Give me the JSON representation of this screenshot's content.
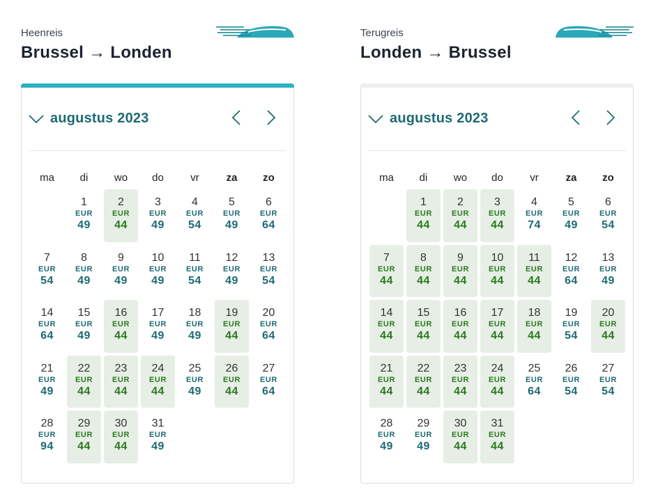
{
  "colors": {
    "accent": "#29b0c1",
    "inactive_bar": "#eeeeee",
    "price_default": "#1e6a73",
    "price_cheap": "#2a7a1c",
    "cheap_bg": "#e6eee6"
  },
  "trips": [
    {
      "kind": "Heenreis",
      "route": "Brussel → Londen",
      "active": true,
      "month": "augustus 2023",
      "weekdays": [
        "ma",
        "di",
        "wo",
        "do",
        "vr",
        "za",
        "zo"
      ],
      "start_offset": 1,
      "currency": "EUR",
      "days": [
        {
          "d": "1",
          "p": "49",
          "cheap": false
        },
        {
          "d": "2",
          "p": "44",
          "cheap": true
        },
        {
          "d": "3",
          "p": "49",
          "cheap": false
        },
        {
          "d": "4",
          "p": "54",
          "cheap": false
        },
        {
          "d": "5",
          "p": "49",
          "cheap": false
        },
        {
          "d": "6",
          "p": "64",
          "cheap": false
        },
        {
          "d": "7",
          "p": "54",
          "cheap": false
        },
        {
          "d": "8",
          "p": "49",
          "cheap": false
        },
        {
          "d": "9",
          "p": "49",
          "cheap": false
        },
        {
          "d": "10",
          "p": "49",
          "cheap": false
        },
        {
          "d": "11",
          "p": "54",
          "cheap": false
        },
        {
          "d": "12",
          "p": "49",
          "cheap": false
        },
        {
          "d": "13",
          "p": "54",
          "cheap": false
        },
        {
          "d": "14",
          "p": "64",
          "cheap": false
        },
        {
          "d": "15",
          "p": "49",
          "cheap": false
        },
        {
          "d": "16",
          "p": "44",
          "cheap": true
        },
        {
          "d": "17",
          "p": "49",
          "cheap": false
        },
        {
          "d": "18",
          "p": "49",
          "cheap": false
        },
        {
          "d": "19",
          "p": "44",
          "cheap": true
        },
        {
          "d": "20",
          "p": "64",
          "cheap": false
        },
        {
          "d": "21",
          "p": "49",
          "cheap": false
        },
        {
          "d": "22",
          "p": "44",
          "cheap": true
        },
        {
          "d": "23",
          "p": "44",
          "cheap": true
        },
        {
          "d": "24",
          "p": "44",
          "cheap": true
        },
        {
          "d": "25",
          "p": "49",
          "cheap": false
        },
        {
          "d": "26",
          "p": "44",
          "cheap": true
        },
        {
          "d": "27",
          "p": "64",
          "cheap": false
        },
        {
          "d": "28",
          "p": "94",
          "cheap": false
        },
        {
          "d": "29",
          "p": "44",
          "cheap": true
        },
        {
          "d": "30",
          "p": "44",
          "cheap": true
        },
        {
          "d": "31",
          "p": "49",
          "cheap": false
        }
      ]
    },
    {
      "kind": "Terugreis",
      "route": "Londen → Brussel",
      "active": false,
      "month": "augustus 2023",
      "weekdays": [
        "ma",
        "di",
        "wo",
        "do",
        "vr",
        "za",
        "zo"
      ],
      "start_offset": 1,
      "currency": "EUR",
      "days": [
        {
          "d": "1",
          "p": "44",
          "cheap": true
        },
        {
          "d": "2",
          "p": "44",
          "cheap": true
        },
        {
          "d": "3",
          "p": "44",
          "cheap": true
        },
        {
          "d": "4",
          "p": "74",
          "cheap": false
        },
        {
          "d": "5",
          "p": "49",
          "cheap": false
        },
        {
          "d": "6",
          "p": "54",
          "cheap": false
        },
        {
          "d": "7",
          "p": "44",
          "cheap": true
        },
        {
          "d": "8",
          "p": "44",
          "cheap": true
        },
        {
          "d": "9",
          "p": "44",
          "cheap": true
        },
        {
          "d": "10",
          "p": "44",
          "cheap": true
        },
        {
          "d": "11",
          "p": "44",
          "cheap": true
        },
        {
          "d": "12",
          "p": "64",
          "cheap": false
        },
        {
          "d": "13",
          "p": "49",
          "cheap": false
        },
        {
          "d": "14",
          "p": "44",
          "cheap": true
        },
        {
          "d": "15",
          "p": "44",
          "cheap": true
        },
        {
          "d": "16",
          "p": "44",
          "cheap": true
        },
        {
          "d": "17",
          "p": "44",
          "cheap": true
        },
        {
          "d": "18",
          "p": "44",
          "cheap": true
        },
        {
          "d": "19",
          "p": "54",
          "cheap": false
        },
        {
          "d": "20",
          "p": "44",
          "cheap": true
        },
        {
          "d": "21",
          "p": "44",
          "cheap": true
        },
        {
          "d": "22",
          "p": "44",
          "cheap": true
        },
        {
          "d": "23",
          "p": "44",
          "cheap": true
        },
        {
          "d": "24",
          "p": "44",
          "cheap": true
        },
        {
          "d": "25",
          "p": "64",
          "cheap": false
        },
        {
          "d": "26",
          "p": "54",
          "cheap": false
        },
        {
          "d": "27",
          "p": "54",
          "cheap": false
        },
        {
          "d": "28",
          "p": "49",
          "cheap": false
        },
        {
          "d": "29",
          "p": "49",
          "cheap": false
        },
        {
          "d": "30",
          "p": "44",
          "cheap": true
        },
        {
          "d": "31",
          "p": "44",
          "cheap": true
        }
      ]
    }
  ]
}
